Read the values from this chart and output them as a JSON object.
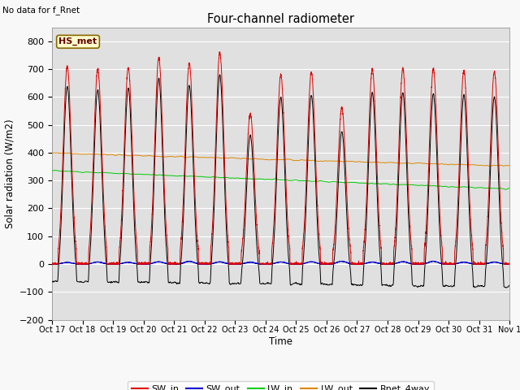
{
  "title": "Four-channel radiometer",
  "xlabel": "Time",
  "ylabel": "Solar radiation (W/m2)",
  "top_left_text": "No data for f_Rnet",
  "station_label": "HS_met",
  "ylim": [
    -200,
    850
  ],
  "yticks": [
    -200,
    -100,
    0,
    100,
    200,
    300,
    400,
    500,
    600,
    700,
    800
  ],
  "xtick_labels": [
    "Oct 17",
    "Oct 18",
    "Oct 19",
    "Oct 20",
    "Oct 21",
    "Oct 22",
    "Oct 23",
    "Oct 24",
    "Oct 25",
    "Oct 26",
    "Oct 27",
    "Oct 28",
    "Oct 29",
    "Oct 30",
    "Oct 31",
    "Nov 1"
  ],
  "n_days": 15,
  "colors": {
    "SW_in": "#dd0000",
    "SW_out": "#0000cc",
    "LW_in": "#00cc00",
    "LW_out": "#dd8800",
    "Rnet_4way": "#000000"
  },
  "legend_labels": [
    "SW_in",
    "SW_out",
    "LW_in",
    "LW_out",
    "Rnet_4way"
  ],
  "plot_bg": "#e0e0e0",
  "fig_bg": "#f8f8f8"
}
